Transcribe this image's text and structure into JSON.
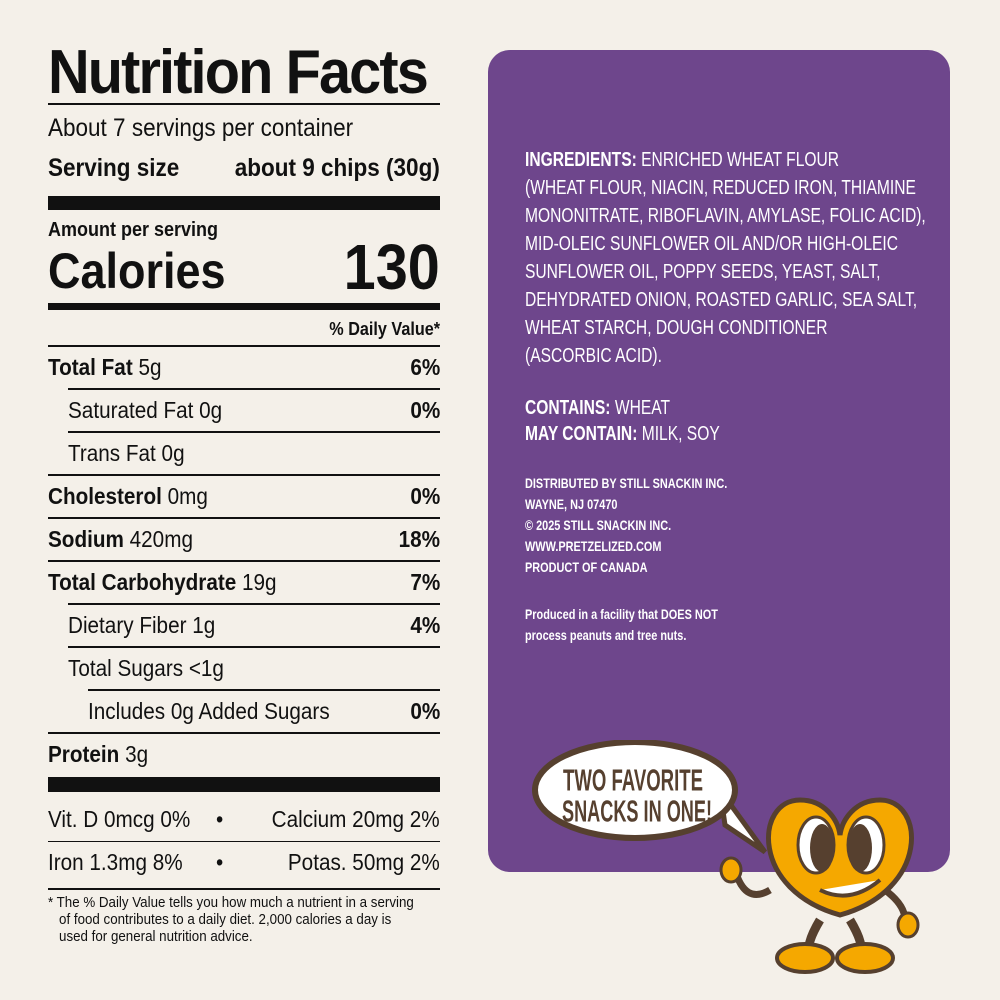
{
  "nutrition": {
    "title": "Nutrition Facts",
    "servings": "About 7 servings per container",
    "serving_size_label": "Serving size",
    "serving_size_value": "about 9 chips (30g)",
    "amount_per_serving": "Amount per serving",
    "calories_label": "Calories",
    "calories_value": "130",
    "dv_header": "% Daily Value*",
    "rows": [
      {
        "name": "Total Fat",
        "amount": "5g",
        "dv": "6%"
      },
      {
        "name": "Saturated Fat",
        "amount": "0g",
        "dv": "0%"
      },
      {
        "name": "Trans Fat",
        "amount": "0g",
        "dv": ""
      },
      {
        "name": "Cholesterol",
        "amount": "0mg",
        "dv": "0%"
      },
      {
        "name": "Sodium",
        "amount": "420mg",
        "dv": "18%"
      },
      {
        "name": "Total Carbohydrate",
        "amount": "19g",
        "dv": "7%"
      },
      {
        "name": "Dietary Fiber",
        "amount": "1g",
        "dv": "4%"
      },
      {
        "name": "Total Sugars",
        "amount": "<1g",
        "dv": ""
      },
      {
        "name": "Includes 0g Added Sugars",
        "amount": "",
        "dv": "0%"
      },
      {
        "name": "Protein",
        "amount": "3g",
        "dv": ""
      }
    ],
    "vitamins": [
      {
        "left": "Vit. D 0mcg 0%",
        "right": "Calcium 20mg 2%"
      },
      {
        "left": "Iron 1.3mg 8%",
        "right": "Potas. 50mg 2%"
      }
    ],
    "bullet": "•",
    "footnote": "* The % Daily Value tells you how much a nutrient in a serving of food contributes to a daily diet. 2,000 calories a day is used for general nutrition advice."
  },
  "panel": {
    "ingredients_label": "INGREDIENTS:",
    "ingredients_lines": [
      " ENRICHED WHEAT FLOUR",
      "(WHEAT FLOUR, NIACIN, REDUCED IRON, THIAMINE",
      "MONONITRATE, RIBOFLAVIN, AMYLASE, FOLIC ACID),",
      "MID-OLEIC SUNFLOWER OIL AND/OR HIGH-OLEIC",
      "SUNFLOWER OIL, POPPY SEEDS, YEAST, SALT,",
      "DEHYDRATED ONION, ROASTED GARLIC, SEA SALT,",
      "WHEAT STARCH, DOUGH CONDITIONER",
      "(ASCORBIC ACID)."
    ],
    "contains_label": "CONTAINS:",
    "contains_value": " WHEAT",
    "may_contain_label": "MAY CONTAIN:",
    "may_contain_value": " MILK, SOY",
    "distributor_lines": [
      "DISTRIBUTED BY STILL SNACKIN INC.",
      "WAYNE, NJ 07470",
      "© 2025 STILL SNACKIN INC.",
      "WWW.PRETZELIZED.COM",
      "PRODUCT OF CANADA"
    ],
    "facility_lines": [
      "Produced in a facility that DOES NOT",
      "process peanuts and tree nuts."
    ]
  },
  "mascot": {
    "speech_lines": [
      "TWO FAVORITE",
      "SNACKS IN ONE!"
    ]
  },
  "colors": {
    "background": "#f4f0e9",
    "panel": "#6e468c",
    "mascot_orange": "#f5a800",
    "mascot_brown": "#56402f"
  }
}
